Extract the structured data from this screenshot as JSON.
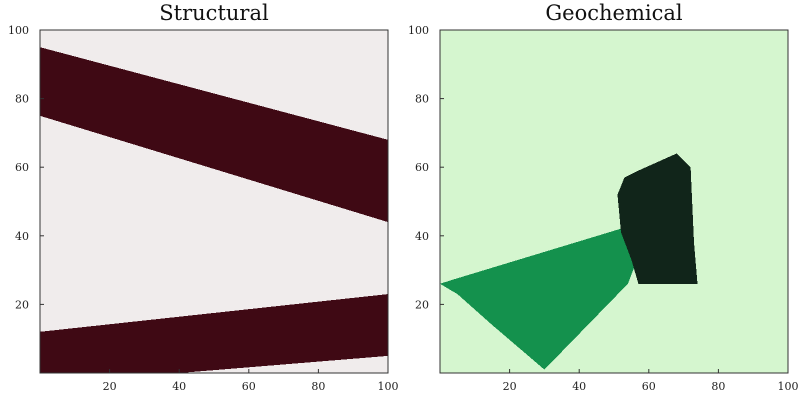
{
  "chart_data": [
    {
      "type": "heatmap",
      "title": "Structural",
      "xlabel": "",
      "ylabel": "",
      "xlim": [
        0,
        100
      ],
      "ylim": [
        0,
        100
      ],
      "x_ticks": [
        20,
        40,
        60,
        80,
        100
      ],
      "y_ticks": [
        20,
        40,
        60,
        80,
        100
      ],
      "grid": false,
      "background_color": "#f0ecec",
      "regions": [
        {
          "color": "#3f0914",
          "polygon": [
            [
              0,
              95
            ],
            [
              100,
              68
            ],
            [
              100,
              44
            ],
            [
              0,
              75
            ]
          ]
        },
        {
          "color": "#3f0914",
          "polygon": [
            [
              0,
              12
            ],
            [
              100,
              23
            ],
            [
              100,
              5
            ],
            [
              40,
              0
            ],
            [
              0,
              0
            ]
          ]
        }
      ]
    },
    {
      "type": "heatmap",
      "title": "Geochemical",
      "xlabel": "",
      "ylabel": "",
      "xlim": [
        0,
        100
      ],
      "ylim": [
        0,
        100
      ],
      "x_ticks": [
        20,
        40,
        60,
        80,
        100
      ],
      "y_ticks": [
        20,
        40,
        60,
        80,
        100
      ],
      "grid": false,
      "background_color": "#d5f6cf",
      "regions": [
        {
          "color": "#14914d",
          "polygon": [
            [
              0,
              26
            ],
            [
              3,
              27
            ],
            [
              55,
              43
            ],
            [
              57,
              34
            ],
            [
              54,
              26
            ],
            [
              30,
              1
            ],
            [
              15,
              14
            ],
            [
              5,
              23
            ]
          ]
        },
        {
          "color": "#11251a",
          "polygon": [
            [
              51,
              52
            ],
            [
              53,
              57
            ],
            [
              57,
              59
            ],
            [
              68,
              64
            ],
            [
              72,
              60
            ],
            [
              73,
              38
            ],
            [
              74,
              26
            ],
            [
              57,
              26
            ],
            [
              55,
              33
            ],
            [
              52,
              41
            ]
          ]
        }
      ]
    }
  ]
}
